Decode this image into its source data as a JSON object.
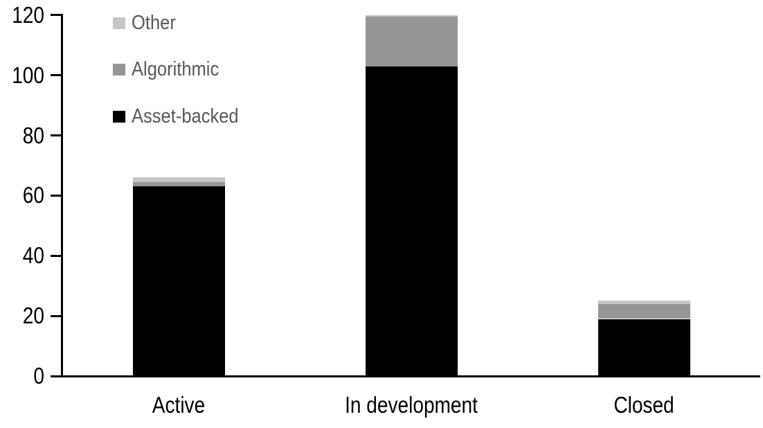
{
  "chart_data": {
    "type": "bar",
    "stacked": true,
    "title": "",
    "xlabel": "",
    "ylabel": "",
    "grid": false,
    "categories": [
      "Active",
      "In development",
      "Closed"
    ],
    "series": [
      {
        "name": "Asset-backed",
        "color": "#000000",
        "values": [
          63,
          103,
          19
        ]
      },
      {
        "name": "Algorithmic",
        "color": "#969696",
        "values": [
          1.5,
          16.5,
          5
        ]
      },
      {
        "name": "Other",
        "color": "#c6c6c6",
        "values": [
          1.5,
          0.5,
          1
        ]
      }
    ],
    "totals": [
      66,
      120,
      25
    ],
    "y_axis": {
      "min": 0,
      "max": 120,
      "tick_step": 20,
      "ticks": [
        0,
        20,
        40,
        60,
        80,
        100,
        120
      ]
    },
    "legend": {
      "position": "top-left",
      "order_top_to_bottom": [
        "Other",
        "Algorithmic",
        "Asset-backed"
      ]
    }
  },
  "colors": {
    "axis": "#000000",
    "axis_label_text": "#000000",
    "category_label_text": "#000000",
    "legend_text": "#595959",
    "background": "#ffffff"
  }
}
